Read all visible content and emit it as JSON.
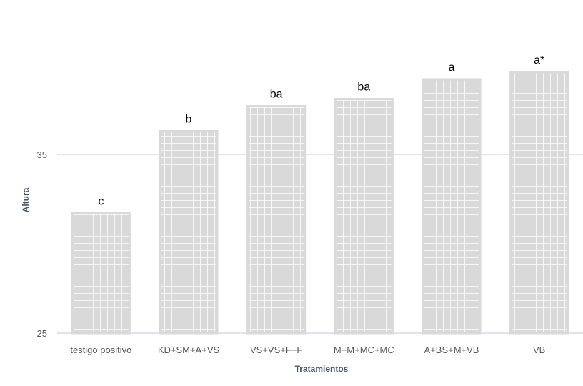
{
  "chart_data": {
    "type": "bar",
    "title": "",
    "xlabel": "Tratamientos",
    "ylabel": "Altura",
    "categories": [
      "testigo positivo",
      "KD+SM+A+VS",
      "VS+VS+F+F",
      "M+M+MC+MC",
      "A+BS+M+VB",
      "VB"
    ],
    "series": [
      {
        "values": [
          31.7,
          36.3,
          37.7,
          38.1,
          39.2,
          39.6
        ],
        "labels": [
          "c",
          "b",
          "ba",
          "ba",
          "a",
          "a*"
        ]
      }
    ],
    "yticks": [
      "25",
      "35"
    ],
    "ylim": [
      25,
      40
    ],
    "grid": true,
    "legend": "none",
    "colors": {
      "bar_fill": "#d9d9d9",
      "bar_pattern": "#ffffff",
      "grid": "#d9d9e8"
    }
  }
}
